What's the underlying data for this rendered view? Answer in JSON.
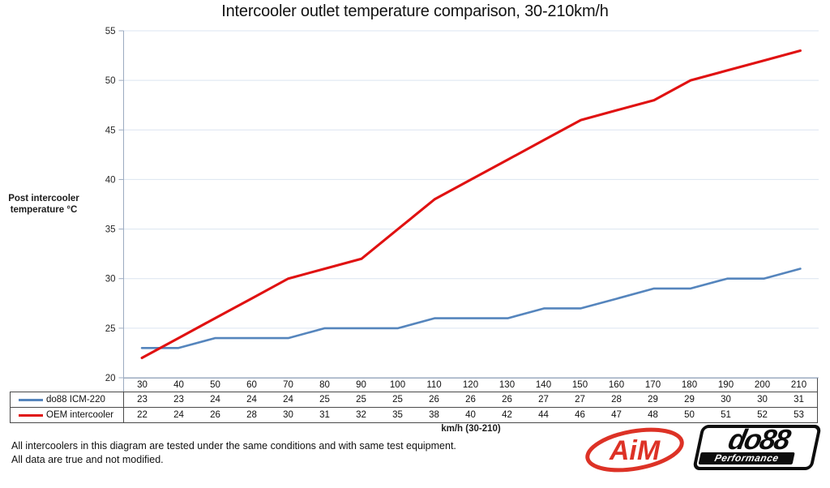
{
  "title": "Intercooler outlet temperature comparison, 30-210km/h",
  "chart_data": {
    "type": "line",
    "title": "Intercooler outlet temperature comparison, 30-210km/h",
    "categories": [
      30,
      40,
      50,
      60,
      70,
      80,
      90,
      100,
      110,
      120,
      130,
      140,
      150,
      160,
      170,
      180,
      190,
      200,
      210
    ],
    "series": [
      {
        "name": "do88 ICM-220",
        "color": "#5585bd",
        "values": [
          23,
          23,
          24,
          24,
          24,
          25,
          25,
          25,
          26,
          26,
          26,
          27,
          27,
          28,
          29,
          29,
          30,
          30,
          31
        ]
      },
      {
        "name": "OEM intercooler",
        "color": "#e01111",
        "values": [
          22,
          24,
          26,
          28,
          30,
          31,
          32,
          35,
          38,
          40,
          42,
          44,
          46,
          47,
          48,
          50,
          51,
          52,
          53
        ]
      }
    ],
    "xlabel": "km/h (30-210)",
    "ylabel": "Post intercooler\ntemperature °C",
    "ylim": [
      20,
      55
    ],
    "ytick_step": 5,
    "grid": true,
    "legend_position": "left-of-data-table-rows"
  },
  "notes": [
    "All intercoolers in this diagram are tested under the same conditions and with same test equipment.",
    "All data are true and not modified."
  ],
  "logos": {
    "aim": {
      "text": "AiM",
      "color": "#dd3226"
    },
    "do88": {
      "text": "do88",
      "subtext": "Performance",
      "color": "#0d0d0d"
    }
  }
}
